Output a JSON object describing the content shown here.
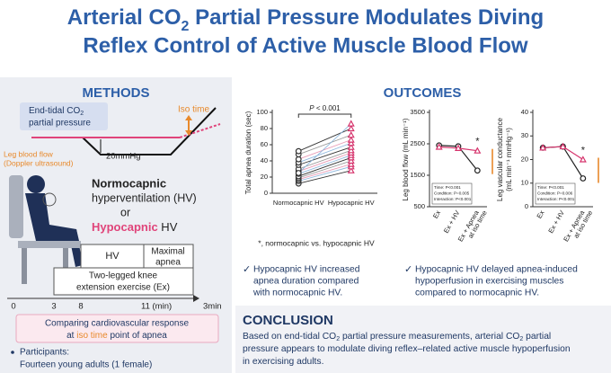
{
  "title": {
    "line1": [
      "Arterial CO",
      "2",
      " Partial Pressure Modulates Diving"
    ],
    "line2": "Reflex Control of Active Muscle Blood Flow"
  },
  "methods": {
    "heading": "METHODS",
    "etco2": {
      "line1": [
        "End-tidal CO",
        "2"
      ],
      "line2": "partial pressure"
    },
    "iso_time": "Iso time",
    "leg_blood_flow": [
      "Leg blood flow",
      "(Doppler ultrasound)"
    ],
    "drop": "20mmHg",
    "conditions": {
      "line1": "Normocapnic",
      "line2": "hyperventilation (HV)",
      "line3": "or",
      "line4": [
        "Hypocapnic",
        " HV"
      ]
    },
    "timeline": {
      "hv": "HV",
      "apnea": [
        "Maximal",
        "apnea"
      ],
      "exercise": [
        "Two-legged knee",
        "extension exercise (Ex)"
      ],
      "ticks": [
        "0",
        "3",
        "8",
        "11 (min)"
      ],
      "end": "3min"
    },
    "comparing": {
      "line1": "Comparing cardiovascular response",
      "line2": [
        "at ",
        "iso time",
        " point of apnea"
      ]
    },
    "participants": {
      "label": "Participants:",
      "text": "Fourteen young adults (1 female)"
    }
  },
  "outcomes": {
    "heading": "OUTCOMES",
    "charts": [
      {
        "type": "paired",
        "ylabel": [
          "Total apnea duration (sec)"
        ],
        "categories": [
          "Normocapnic HV",
          "Hypocapnic HV"
        ],
        "values": [
          [
            12,
            15,
            17,
            19,
            21,
            24,
            27,
            30,
            35,
            38,
            42,
            48,
            52,
            25
          ],
          [
            28,
            33,
            36,
            40,
            44,
            47,
            50,
            53,
            57,
            62,
            66,
            72,
            80,
            86
          ]
        ],
        "marker_colors": [
          "#333333",
          "#d6336c"
        ],
        "line_colors": [
          "#333333",
          "#8fb8de",
          "#e89ab5",
          "#999999"
        ],
        "p_label": [
          "P",
          " < 0.001"
        ],
        "ylim": [
          0,
          100
        ],
        "yticks": [
          0,
          20,
          40,
          60,
          80,
          100
        ]
      },
      {
        "type": "line",
        "ylabel": [
          "Leg blood flow (mL min⁻¹)"
        ],
        "categories": [
          [
            "Ex"
          ],
          [
            "Ex + HV"
          ],
          [
            "Ex + Apnea",
            "at iso time"
          ]
        ],
        "series": [
          {
            "color": "#222222",
            "marker": "circle",
            "values": [
              2450,
              2420,
              1650
            ]
          },
          {
            "color": "#d6336c",
            "marker": "triangle",
            "values": [
              2400,
              2360,
              2280
            ]
          }
        ],
        "sig_label": "*",
        "stats": [
          "Time: P<0.001",
          "Condition: P=0.005",
          "Interaction: P<0.001"
        ],
        "ylim": [
          500,
          3500
        ],
        "yticks": [
          500,
          1500,
          2500,
          3500
        ]
      },
      {
        "type": "line",
        "ylabel": [
          "Leg vascular conductance",
          "(mL min⁻¹ mmHg⁻¹)"
        ],
        "categories": [
          [
            "Ex"
          ],
          [
            "Ex + HV"
          ],
          [
            "Ex + Apnea",
            "at iso time"
          ]
        ],
        "series": [
          {
            "color": "#222222",
            "marker": "circle",
            "values": [
              25,
              25.5,
              12
            ]
          },
          {
            "color": "#d6336c",
            "marker": "triangle",
            "values": [
              25,
              25.5,
              20
            ]
          }
        ],
        "sig_label": "*",
        "stats": [
          "Time: P<0.001",
          "Condition: P=0.006",
          "Interaction: P<0.001"
        ],
        "ylim": [
          0,
          40
        ],
        "yticks": [
          0,
          10,
          20,
          30,
          40
        ]
      }
    ],
    "footnote": "*, normocapnic vs. hypocapnic HV",
    "bullets": [
      [
        "Hypocapnic HV increased",
        "apnea duration compared",
        "with normocapnic HV."
      ],
      [
        "Hypocapnic HV delayed apnea-induced",
        "hypoperfusion in exercising muscles",
        "compared to normocapnic HV."
      ]
    ]
  },
  "conclusion": {
    "heading": "CONCLUSION",
    "lines": [
      [
        "Based on end-tidal CO",
        "2",
        " partial pressure measurements, arterial CO",
        "2",
        " partial"
      ],
      [
        "pressure appears to modulate diving reflex–related active muscle hypoperfusion"
      ],
      [
        "in exercising adults."
      ]
    ]
  }
}
